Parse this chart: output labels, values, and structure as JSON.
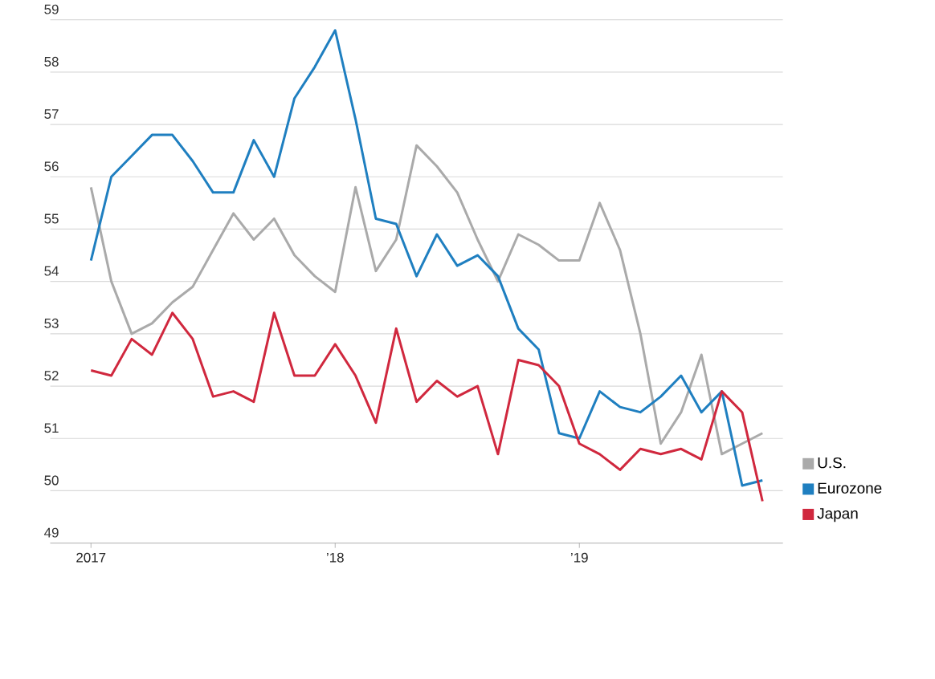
{
  "chart_data": {
    "type": "line",
    "x": [
      "2017-01",
      "2017-02",
      "2017-03",
      "2017-04",
      "2017-05",
      "2017-06",
      "2017-07",
      "2017-08",
      "2017-09",
      "2017-10",
      "2017-11",
      "2017-12",
      "2018-01",
      "2018-02",
      "2018-03",
      "2018-04",
      "2018-05",
      "2018-06",
      "2018-07",
      "2018-08",
      "2018-09",
      "2018-10",
      "2018-11",
      "2018-12",
      "2019-01",
      "2019-02",
      "2019-03",
      "2019-04",
      "2019-05",
      "2019-06",
      "2019-07",
      "2019-08",
      "2019-09",
      "2019-10"
    ],
    "series": [
      {
        "name": "U.S.",
        "color": "#aaaaaa",
        "values": [
          55.8,
          54.0,
          53.0,
          53.2,
          53.6,
          53.9,
          54.6,
          55.3,
          54.8,
          55.2,
          54.5,
          54.1,
          53.8,
          55.8,
          54.2,
          54.8,
          56.6,
          56.2,
          55.7,
          54.8,
          54.0,
          54.9,
          54.7,
          54.4,
          54.4,
          55.5,
          54.6,
          53.0,
          50.9,
          51.5,
          52.6,
          50.7,
          50.9,
          51.1
        ]
      },
      {
        "name": "Eurozone",
        "color": "#1f7fc0",
        "values": [
          54.4,
          56.0,
          56.4,
          56.8,
          56.8,
          56.3,
          55.7,
          55.7,
          56.7,
          56.0,
          57.5,
          58.1,
          58.8,
          57.1,
          55.2,
          55.1,
          54.1,
          54.9,
          54.3,
          54.5,
          54.1,
          53.1,
          52.7,
          51.1,
          51.0,
          51.9,
          51.6,
          51.5,
          51.8,
          52.2,
          51.5,
          51.9,
          50.1,
          50.2
        ]
      },
      {
        "name": "Japan",
        "color": "#d0283e",
        "values": [
          52.3,
          52.2,
          52.9,
          52.6,
          53.4,
          52.9,
          51.8,
          51.9,
          51.7,
          53.4,
          52.2,
          52.2,
          52.8,
          52.2,
          51.3,
          53.1,
          51.7,
          52.1,
          51.8,
          52.0,
          50.7,
          52.5,
          52.4,
          52.0,
          50.9,
          50.7,
          50.4,
          50.8,
          50.7,
          50.8,
          50.6,
          51.9,
          51.5,
          49.8
        ]
      }
    ],
    "xlim": [
      "2016-11",
      "2019-11"
    ],
    "xticks": [
      {
        "value": "2017-01",
        "label": "2017"
      },
      {
        "value": "2018-01",
        "label": "’18"
      },
      {
        "value": "2019-01",
        "label": "’19"
      }
    ],
    "ylim": [
      49,
      59
    ],
    "yticks": [
      49,
      50,
      51,
      52,
      53,
      54,
      55,
      56,
      57,
      58,
      59
    ],
    "grid": "y",
    "legend": "right",
    "line_style": "solid",
    "marker": "none"
  }
}
